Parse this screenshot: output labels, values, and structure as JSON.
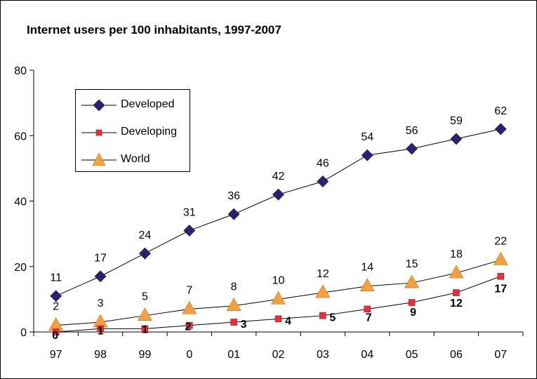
{
  "title": "Internet users per 100 inhabitants, 1997-2007",
  "chart_data": {
    "type": "line",
    "title": "Internet users per 100 inhabitants, 1997-2007",
    "xlabel": "",
    "ylabel": "",
    "categories": [
      "97",
      "98",
      "99",
      "0",
      "01",
      "02",
      "03",
      "04",
      "05",
      "06",
      "07"
    ],
    "ylim": [
      0,
      80
    ],
    "yticks": [
      0,
      20,
      40,
      60,
      80
    ],
    "grid": false,
    "legend_position": "top-left",
    "series": [
      {
        "name": "Developed",
        "marker": "diamond",
        "color": "#2E2070",
        "values": [
          11,
          17,
          24,
          31,
          36,
          42,
          46,
          54,
          56,
          59,
          62
        ],
        "labels": [
          "11",
          "17",
          "24",
          "31",
          "36",
          "42",
          "46",
          "54",
          "56",
          "59",
          "62"
        ]
      },
      {
        "name": "Developing",
        "marker": "square",
        "color": "#E8303A",
        "values": [
          0,
          1,
          1,
          2,
          3,
          4,
          5,
          7,
          9,
          12,
          17
        ],
        "labels": [
          "0",
          "1",
          "1",
          "2",
          "3",
          "4",
          "5",
          "7",
          "9",
          "12",
          "17"
        ]
      },
      {
        "name": "World",
        "marker": "triangle",
        "color": "#F4A041",
        "values": [
          2,
          3,
          5,
          7,
          8,
          10,
          12,
          14,
          15,
          18,
          22
        ],
        "labels": [
          "2",
          "3",
          "5",
          "7",
          "8",
          "10",
          "12",
          "14",
          "15",
          "18",
          "22"
        ]
      }
    ]
  }
}
